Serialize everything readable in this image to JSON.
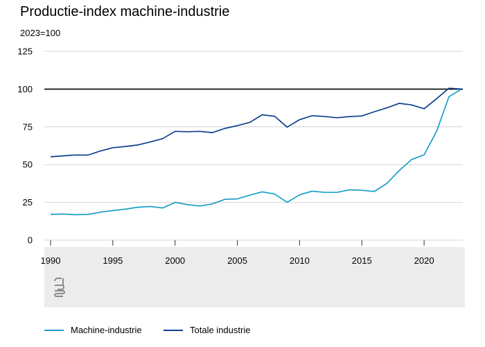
{
  "chart_data": {
    "type": "line",
    "title": "Productie-index machine-industrie",
    "unit_label": "2023=100",
    "xlabel": "",
    "ylabel": "",
    "x": [
      1990,
      1991,
      1992,
      1993,
      1994,
      1995,
      1996,
      1997,
      1998,
      1999,
      2000,
      2001,
      2002,
      2003,
      2004,
      2005,
      2006,
      2007,
      2008,
      2009,
      2010,
      2011,
      2012,
      2013,
      2014,
      2015,
      2016,
      2017,
      2018,
      2019,
      2020,
      2021,
      2022,
      2023
    ],
    "x_ticks": [
      "1990",
      "1995",
      "2000",
      "2005",
      "2010",
      "2015",
      "2020"
    ],
    "x_tick_values": [
      1990,
      1995,
      2000,
      2005,
      2010,
      2015,
      2020
    ],
    "y_ticks": [
      "0",
      "25",
      "50",
      "75",
      "100",
      "125"
    ],
    "y_tick_values": [
      0,
      25,
      50,
      75,
      100,
      125
    ],
    "ylim": [
      0,
      125
    ],
    "xlim": [
      1990,
      2023
    ],
    "reference_line": 100,
    "grid": "horizontal",
    "legend": "bottom",
    "series": [
      {
        "name": "Machine-industrie",
        "color": "#1a9fc6",
        "values": [
          17,
          17.3,
          16.8,
          17,
          18.5,
          19.6,
          20.5,
          21.8,
          22.3,
          21.3,
          25,
          23.5,
          22.6,
          24,
          27,
          27.3,
          29.8,
          32,
          30.5,
          25,
          30,
          32.4,
          31.6,
          31.6,
          33.3,
          33,
          32.2,
          37.5,
          46,
          53.4,
          56.5,
          72,
          95,
          100
        ]
      },
      {
        "name": "Totale industrie",
        "color": "#0b3f8e",
        "values": [
          55.2,
          55.8,
          56.4,
          56.3,
          59,
          61.2,
          62,
          63,
          65,
          67.2,
          72,
          71.8,
          72,
          71.2,
          74,
          75.8,
          78,
          83,
          82,
          74.8,
          79.8,
          82.4,
          81.9,
          81,
          81.8,
          82.2,
          85,
          87.6,
          90.6,
          89.5,
          87,
          93.6,
          100.6,
          100
        ]
      }
    ],
    "reference_color": "#000000",
    "axis_area_color": "#ececec"
  }
}
